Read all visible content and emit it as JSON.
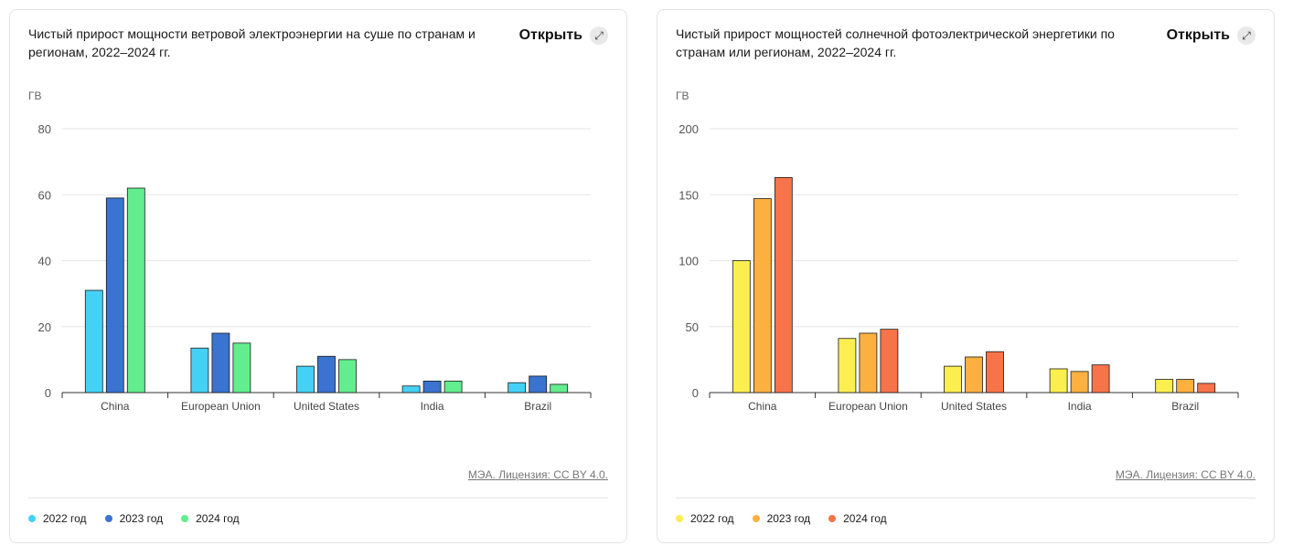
{
  "cards": [
    {
      "title": "Чистый прирост мощности ветровой электроэнергии на суше по странам и регионам, 2022–2024 гг.",
      "open_label": "Открыть",
      "open_icon": "expand-icon",
      "source_label": "МЭА. Лицензия: CC BY 4.0.",
      "legend": [
        {
          "label": "2022 год",
          "color": "#45d1f5"
        },
        {
          "label": "2023 год",
          "color": "#3a73d0"
        },
        {
          "label": "2024 год",
          "color": "#62ee8e"
        }
      ]
    },
    {
      "title": "Чистый прирост мощностей солнечной фотоэлектрической энергетики по странам или регионам, 2022–2024 гг.",
      "open_label": "Открыть",
      "open_icon": "expand-icon",
      "source_label": "МЭА. Лицензия: CC BY 4.0.",
      "legend": [
        {
          "label": "2022 год",
          "color": "#fbee4f"
        },
        {
          "label": "2023 год",
          "color": "#fbb040"
        },
        {
          "label": "2024 год",
          "color": "#f7734a"
        }
      ]
    }
  ],
  "chart_data": [
    {
      "type": "bar",
      "title": "Чистый прирост мощности ветровой электроэнергии на суше по странам и регионам, 2022–2024 гг.",
      "ylabel": "ГВ",
      "categories": [
        "China",
        "European Union",
        "United States",
        "India",
        "Brazil"
      ],
      "ylim": [
        0,
        80
      ],
      "yticks": [
        0,
        20,
        40,
        60,
        80
      ],
      "grid": true,
      "legend_position": "bottom-left",
      "series": [
        {
          "name": "2022 год",
          "color": "#45d1f5",
          "values": [
            31,
            13.5,
            8,
            2,
            3
          ]
        },
        {
          "name": "2023 год",
          "color": "#3a73d0",
          "values": [
            59,
            18,
            11,
            3.5,
            5
          ]
        },
        {
          "name": "2024 год",
          "color": "#62ee8e",
          "values": [
            62,
            15,
            10,
            3.5,
            2.5
          ]
        }
      ]
    },
    {
      "type": "bar",
      "title": "Чистый прирост мощностей солнечной фотоэлектрической энергетики по странам или регионам, 2022–2024 гг.",
      "ylabel": "ГВ",
      "categories": [
        "China",
        "European Union",
        "United States",
        "India",
        "Brazil"
      ],
      "ylim": [
        0,
        200
      ],
      "yticks": [
        0,
        50,
        100,
        150,
        200
      ],
      "grid": true,
      "legend_position": "bottom-left",
      "series": [
        {
          "name": "2022 год",
          "color": "#fbee4f",
          "values": [
            100,
            41,
            20,
            18,
            10
          ]
        },
        {
          "name": "2023 год",
          "color": "#fbb040",
          "values": [
            147,
            45,
            27,
            16,
            10
          ]
        },
        {
          "name": "2024 год",
          "color": "#f7734a",
          "values": [
            163,
            48,
            31,
            21,
            7
          ]
        }
      ]
    }
  ]
}
